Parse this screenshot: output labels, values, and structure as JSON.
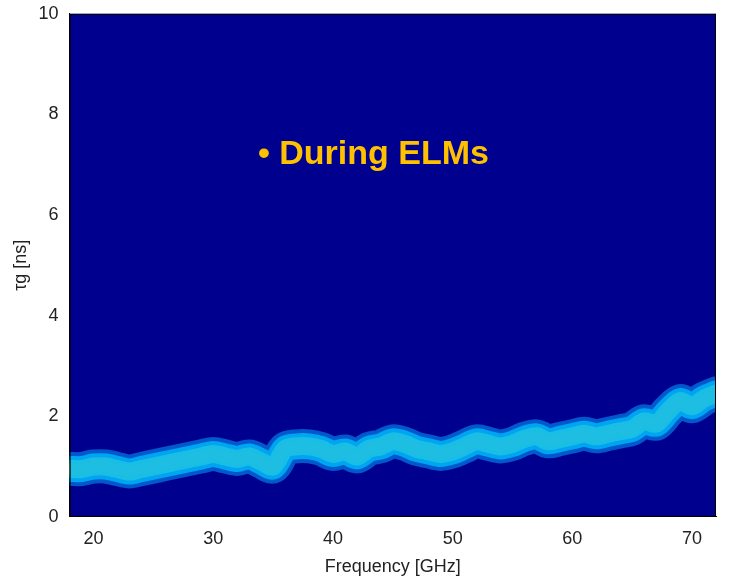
{
  "chart_data": {
    "type": "line",
    "annotation": "• During ELMs",
    "x_label": "Frequency [GHz]",
    "y_label": "τg [ns]",
    "x": [
      18,
      19,
      20,
      21,
      22,
      23,
      24,
      25,
      26,
      27,
      28,
      29,
      30,
      31,
      32,
      33,
      34,
      35,
      36,
      37,
      38,
      39,
      40,
      41,
      42,
      43,
      44,
      45,
      46,
      47,
      48,
      49,
      50,
      51,
      52,
      53,
      54,
      55,
      56,
      57,
      58,
      59,
      60,
      61,
      62,
      63,
      64,
      65,
      66,
      67,
      68,
      69,
      70,
      71,
      72
    ],
    "values": [
      0.95,
      0.95,
      1.0,
      1.0,
      0.95,
      0.9,
      0.95,
      1.0,
      1.05,
      1.1,
      1.15,
      1.2,
      1.25,
      1.2,
      1.15,
      1.2,
      1.1,
      1.0,
      1.35,
      1.4,
      1.4,
      1.35,
      1.25,
      1.3,
      1.2,
      1.35,
      1.4,
      1.5,
      1.45,
      1.35,
      1.3,
      1.25,
      1.3,
      1.4,
      1.5,
      1.45,
      1.4,
      1.45,
      1.55,
      1.6,
      1.5,
      1.55,
      1.6,
      1.65,
      1.6,
      1.65,
      1.7,
      1.75,
      1.9,
      1.85,
      2.1,
      2.3,
      2.2,
      2.35,
      2.45
    ],
    "color": "#ffffff",
    "xlim": [
      18,
      72
    ],
    "xticks": [
      20,
      30,
      40,
      50,
      60,
      70
    ],
    "ylim": [
      0,
      10
    ],
    "yticks": [
      0,
      2,
      4,
      6,
      8,
      10
    ],
    "grid": false
  }
}
